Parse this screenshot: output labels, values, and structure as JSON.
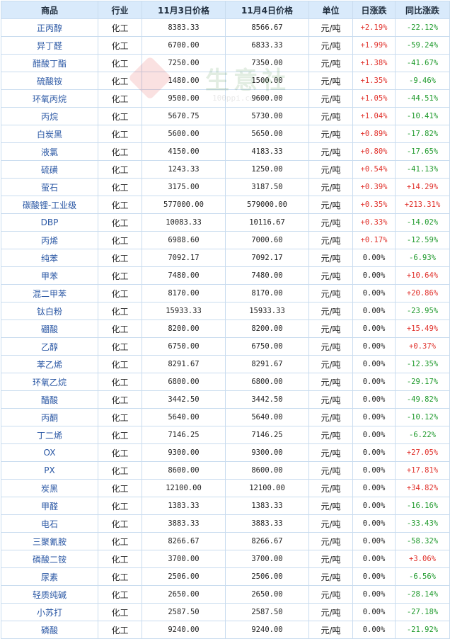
{
  "headers": [
    "商品",
    "行业",
    "11月3日价格",
    "11月4日价格",
    "单位",
    "日涨跌",
    "同比涨跌"
  ],
  "colors": {
    "up": "#e0302a",
    "down": "#1f9a2c",
    "header_bg": "#d9eafb",
    "name_link": "#2a57a4"
  },
  "watermark": {
    "text": "生意社",
    "url": "100ppi.com"
  },
  "rows": [
    {
      "name": "正丙醇",
      "industry": "化工",
      "p1": "8383.33",
      "p2": "8566.67",
      "unit": "元/吨",
      "day": "+2.19%",
      "yoy": "-22.12%"
    },
    {
      "name": "异丁醛",
      "industry": "化工",
      "p1": "6700.00",
      "p2": "6833.33",
      "unit": "元/吨",
      "day": "+1.99%",
      "yoy": "-59.24%"
    },
    {
      "name": "醋酸丁酯",
      "industry": "化工",
      "p1": "7250.00",
      "p2": "7350.00",
      "unit": "元/吨",
      "day": "+1.38%",
      "yoy": "-41.67%"
    },
    {
      "name": "硫酸铵",
      "industry": "化工",
      "p1": "1480.00",
      "p2": "1500.00",
      "unit": "元/吨",
      "day": "+1.35%",
      "yoy": "-9.46%"
    },
    {
      "name": "环氧丙烷",
      "industry": "化工",
      "p1": "9500.00",
      "p2": "9600.00",
      "unit": "元/吨",
      "day": "+1.05%",
      "yoy": "-44.51%"
    },
    {
      "name": "丙烷",
      "industry": "化工",
      "p1": "5670.75",
      "p2": "5730.00",
      "unit": "元/吨",
      "day": "+1.04%",
      "yoy": "-10.41%"
    },
    {
      "name": "白炭黑",
      "industry": "化工",
      "p1": "5600.00",
      "p2": "5650.00",
      "unit": "元/吨",
      "day": "+0.89%",
      "yoy": "-17.82%"
    },
    {
      "name": "液氯",
      "industry": "化工",
      "p1": "4150.00",
      "p2": "4183.33",
      "unit": "元/吨",
      "day": "+0.80%",
      "yoy": "-17.65%"
    },
    {
      "name": "硫磺",
      "industry": "化工",
      "p1": "1243.33",
      "p2": "1250.00",
      "unit": "元/吨",
      "day": "+0.54%",
      "yoy": "-41.13%"
    },
    {
      "name": "萤石",
      "industry": "化工",
      "p1": "3175.00",
      "p2": "3187.50",
      "unit": "元/吨",
      "day": "+0.39%",
      "yoy": "+14.29%"
    },
    {
      "name": "碳酸锂-工业级",
      "industry": "化工",
      "p1": "577000.00",
      "p2": "579000.00",
      "unit": "元/吨",
      "day": "+0.35%",
      "yoy": "+213.31%"
    },
    {
      "name": "DBP",
      "industry": "化工",
      "p1": "10083.33",
      "p2": "10116.67",
      "unit": "元/吨",
      "day": "+0.33%",
      "yoy": "-14.02%"
    },
    {
      "name": "丙烯",
      "industry": "化工",
      "p1": "6988.60",
      "p2": "7000.60",
      "unit": "元/吨",
      "day": "+0.17%",
      "yoy": "-12.59%"
    },
    {
      "name": "纯苯",
      "industry": "化工",
      "p1": "7092.17",
      "p2": "7092.17",
      "unit": "元/吨",
      "day": "0.00%",
      "yoy": "-6.93%"
    },
    {
      "name": "甲苯",
      "industry": "化工",
      "p1": "7480.00",
      "p2": "7480.00",
      "unit": "元/吨",
      "day": "0.00%",
      "yoy": "+10.64%"
    },
    {
      "name": "混二甲苯",
      "industry": "化工",
      "p1": "8170.00",
      "p2": "8170.00",
      "unit": "元/吨",
      "day": "0.00%",
      "yoy": "+20.86%"
    },
    {
      "name": "钛白粉",
      "industry": "化工",
      "p1": "15933.33",
      "p2": "15933.33",
      "unit": "元/吨",
      "day": "0.00%",
      "yoy": "-23.95%"
    },
    {
      "name": "硼酸",
      "industry": "化工",
      "p1": "8200.00",
      "p2": "8200.00",
      "unit": "元/吨",
      "day": "0.00%",
      "yoy": "+15.49%"
    },
    {
      "name": "乙醇",
      "industry": "化工",
      "p1": "6750.00",
      "p2": "6750.00",
      "unit": "元/吨",
      "day": "0.00%",
      "yoy": "+0.37%"
    },
    {
      "name": "苯乙烯",
      "industry": "化工",
      "p1": "8291.67",
      "p2": "8291.67",
      "unit": "元/吨",
      "day": "0.00%",
      "yoy": "-12.35%"
    },
    {
      "name": "环氧乙烷",
      "industry": "化工",
      "p1": "6800.00",
      "p2": "6800.00",
      "unit": "元/吨",
      "day": "0.00%",
      "yoy": "-29.17%"
    },
    {
      "name": "醋酸",
      "industry": "化工",
      "p1": "3442.50",
      "p2": "3442.50",
      "unit": "元/吨",
      "day": "0.00%",
      "yoy": "-49.82%"
    },
    {
      "name": "丙酮",
      "industry": "化工",
      "p1": "5640.00",
      "p2": "5640.00",
      "unit": "元/吨",
      "day": "0.00%",
      "yoy": "-10.12%"
    },
    {
      "name": "丁二烯",
      "industry": "化工",
      "p1": "7146.25",
      "p2": "7146.25",
      "unit": "元/吨",
      "day": "0.00%",
      "yoy": "-6.22%"
    },
    {
      "name": "OX",
      "industry": "化工",
      "p1": "9300.00",
      "p2": "9300.00",
      "unit": "元/吨",
      "day": "0.00%",
      "yoy": "+27.05%"
    },
    {
      "name": "PX",
      "industry": "化工",
      "p1": "8600.00",
      "p2": "8600.00",
      "unit": "元/吨",
      "day": "0.00%",
      "yoy": "+17.81%"
    },
    {
      "name": "炭黑",
      "industry": "化工",
      "p1": "12100.00",
      "p2": "12100.00",
      "unit": "元/吨",
      "day": "0.00%",
      "yoy": "+34.82%"
    },
    {
      "name": "甲醛",
      "industry": "化工",
      "p1": "1383.33",
      "p2": "1383.33",
      "unit": "元/吨",
      "day": "0.00%",
      "yoy": "-16.16%"
    },
    {
      "name": "电石",
      "industry": "化工",
      "p1": "3883.33",
      "p2": "3883.33",
      "unit": "元/吨",
      "day": "0.00%",
      "yoy": "-33.43%"
    },
    {
      "name": "三聚氰胺",
      "industry": "化工",
      "p1": "8266.67",
      "p2": "8266.67",
      "unit": "元/吨",
      "day": "0.00%",
      "yoy": "-58.32%"
    },
    {
      "name": "磷酸二铵",
      "industry": "化工",
      "p1": "3700.00",
      "p2": "3700.00",
      "unit": "元/吨",
      "day": "0.00%",
      "yoy": "+3.06%"
    },
    {
      "name": "尿素",
      "industry": "化工",
      "p1": "2506.00",
      "p2": "2506.00",
      "unit": "元/吨",
      "day": "0.00%",
      "yoy": "-6.56%"
    },
    {
      "name": "轻质纯碱",
      "industry": "化工",
      "p1": "2650.00",
      "p2": "2650.00",
      "unit": "元/吨",
      "day": "0.00%",
      "yoy": "-28.14%"
    },
    {
      "name": "小苏打",
      "industry": "化工",
      "p1": "2587.50",
      "p2": "2587.50",
      "unit": "元/吨",
      "day": "0.00%",
      "yoy": "-27.18%"
    },
    {
      "name": "磷酸",
      "industry": "化工",
      "p1": "9240.00",
      "p2": "9240.00",
      "unit": "元/吨",
      "day": "0.00%",
      "yoy": "-21.92%"
    }
  ]
}
